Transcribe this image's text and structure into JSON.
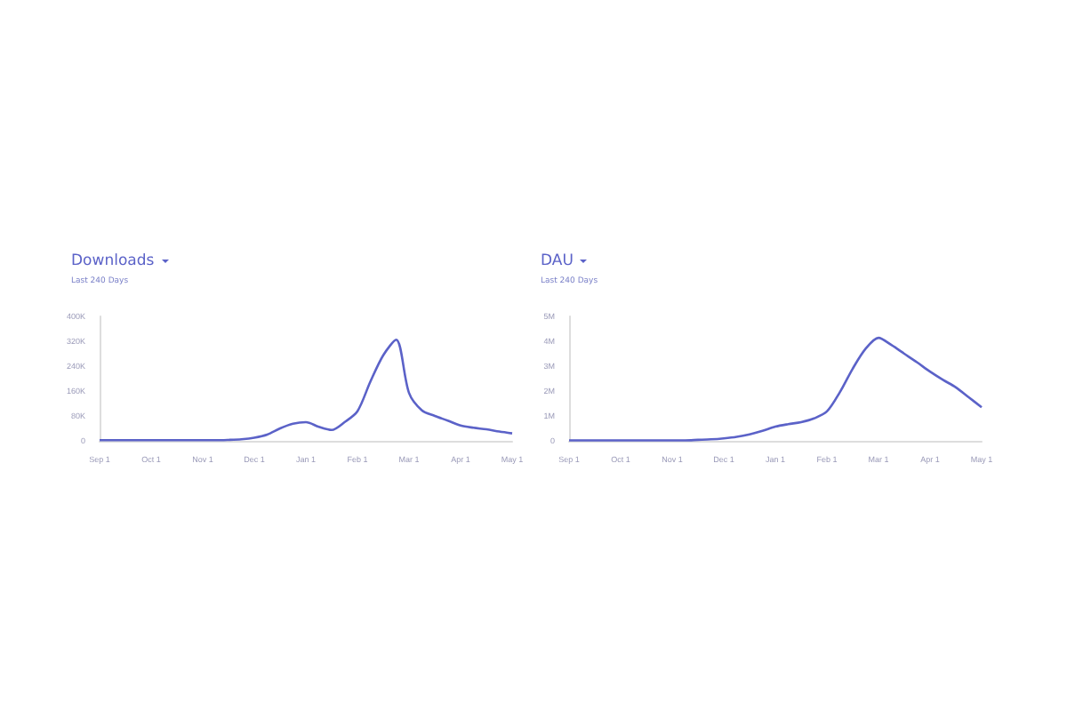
{
  "chart_data": [
    {
      "type": "line",
      "title": "Downloads",
      "subtitle": "Last 240 Days",
      "categories": [
        "Sep 1",
        null,
        null,
        null,
        "Oct 1",
        null,
        null,
        null,
        "Nov 1",
        null,
        null,
        null,
        "Dec 1",
        null,
        null,
        null,
        "Jan 1",
        null,
        null,
        null,
        "Feb 1",
        null,
        null,
        null,
        "Mar 1",
        null,
        null,
        null,
        "Apr 1",
        null,
        null,
        null,
        "May 1"
      ],
      "series": [
        {
          "color": "#5b62c8",
          "values": [
            2000,
            2000,
            2000,
            2000,
            2000,
            2000,
            2000,
            2000,
            2000,
            2000,
            3000,
            5000,
            10000,
            20000,
            40000,
            55000,
            60000,
            45000,
            35000,
            60000,
            95000,
            190000,
            275000,
            325000,
            154000,
            98000,
            80000,
            65000,
            49000,
            42000,
            37000,
            30000,
            24000
          ]
        }
      ],
      "ylim": [
        0,
        400000
      ],
      "yticks": [
        {
          "value": 0,
          "label": "0"
        },
        {
          "value": 80000,
          "label": "80K"
        },
        {
          "value": 160000,
          "label": "160K"
        },
        {
          "value": 240000,
          "label": "240K"
        },
        {
          "value": 320000,
          "label": "320K"
        },
        {
          "value": 400000,
          "label": "400K"
        }
      ],
      "grid": false,
      "marker": "none",
      "line_style": "solid"
    },
    {
      "type": "line",
      "title": "DAU",
      "subtitle": "Last 240 Days",
      "categories": [
        "Sep 1",
        null,
        null,
        null,
        "Oct 1",
        null,
        null,
        null,
        "Nov 1",
        null,
        null,
        null,
        "Dec 1",
        null,
        null,
        null,
        "Jan 1",
        null,
        null,
        null,
        "Feb 1",
        null,
        null,
        null,
        "Mar 1",
        null,
        null,
        null,
        "Apr 1",
        null,
        null,
        null,
        "May 1"
      ],
      "series": [
        {
          "color": "#5b62c8",
          "values": [
            20000,
            20000,
            20000,
            20000,
            20000,
            20000,
            20000,
            20000,
            20000,
            20000,
            40000,
            60000,
            100000,
            160000,
            260000,
            400000,
            570000,
            670000,
            750000,
            900000,
            1180000,
            1950000,
            2900000,
            3700000,
            4140000,
            3850000,
            3500000,
            3150000,
            2780000,
            2450000,
            2150000,
            1750000,
            1350000
          ]
        }
      ],
      "ylim": [
        0,
        5000000
      ],
      "yticks": [
        {
          "value": 0,
          "label": "0"
        },
        {
          "value": 1000000,
          "label": "1M"
        },
        {
          "value": 2000000,
          "label": "2M"
        },
        {
          "value": 3000000,
          "label": "3M"
        },
        {
          "value": 4000000,
          "label": "4M"
        },
        {
          "value": 5000000,
          "label": "5M"
        }
      ],
      "grid": false,
      "marker": "none",
      "line_style": "solid"
    }
  ]
}
